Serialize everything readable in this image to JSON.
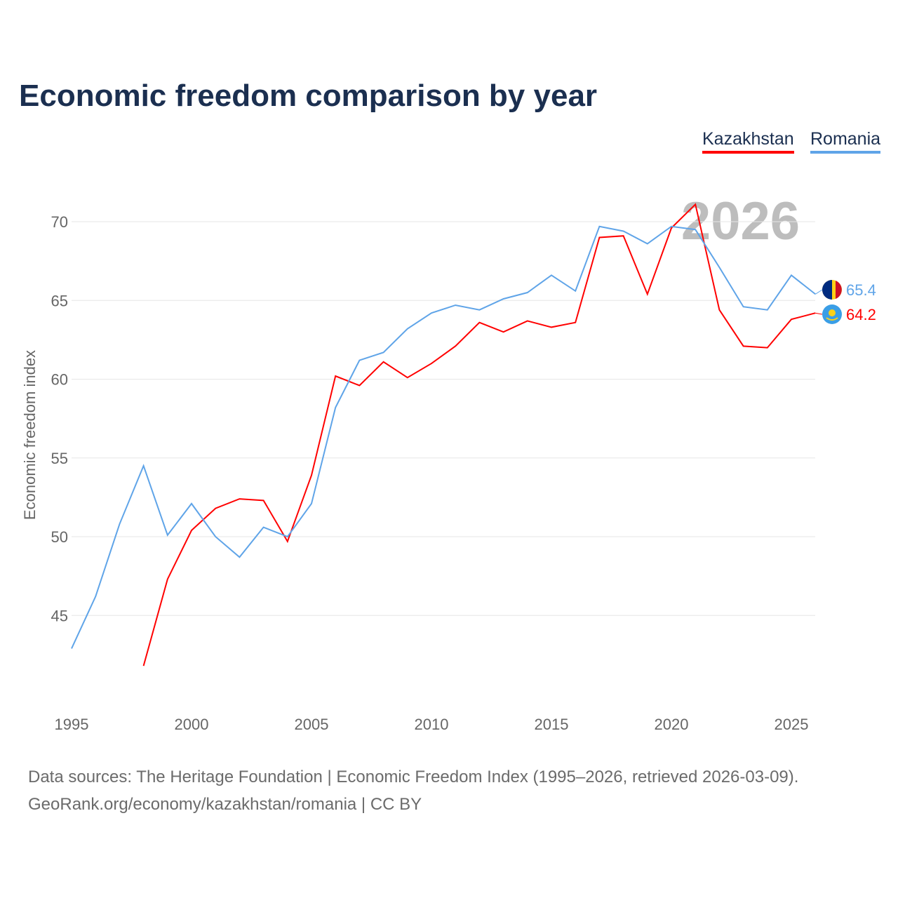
{
  "title": "Economic freedom comparison by year",
  "legend": [
    {
      "label": "Kazakhstan",
      "color": "#ff0000"
    },
    {
      "label": "Romania",
      "color": "#5fa4e8"
    }
  ],
  "footer": {
    "line1": "Data sources: The Heritage Foundation | Economic Freedom Index (1995–2026, retrieved 2026-03-09).",
    "line2": "GeoRank.org/economy/kazakhstan/romania | CC BY"
  },
  "chart_data": {
    "type": "line",
    "title": "Economic freedom comparison by year",
    "ylabel": "Economic freedom index",
    "xlabel": "",
    "year_watermark": "2026",
    "xlim": [
      1995,
      2026
    ],
    "ylim": [
      40.5,
      72.5
    ],
    "xticks": [
      1995,
      2000,
      2005,
      2010,
      2015,
      2020,
      2025
    ],
    "yticks": [
      45,
      50,
      55,
      60,
      65,
      70
    ],
    "grid": true,
    "series": [
      {
        "name": "Kazakhstan",
        "color": "#ff0000",
        "end_label": "64.2",
        "x": [
          1998,
          1999,
          2000,
          2001,
          2002,
          2003,
          2004,
          2005,
          2006,
          2007,
          2008,
          2009,
          2010,
          2011,
          2012,
          2013,
          2014,
          2015,
          2016,
          2017,
          2018,
          2019,
          2020,
          2021,
          2022,
          2023,
          2024,
          2025,
          2026
        ],
        "y": [
          41.8,
          47.3,
          50.4,
          51.8,
          52.4,
          52.3,
          49.7,
          53.9,
          60.2,
          59.6,
          61.1,
          60.1,
          61.0,
          62.1,
          63.6,
          63.0,
          63.7,
          63.3,
          63.6,
          69.0,
          69.1,
          65.4,
          69.6,
          71.1,
          64.4,
          62.1,
          62.0,
          63.8,
          64.2
        ]
      },
      {
        "name": "Romania",
        "color": "#5fa4e8",
        "end_label": "65.4",
        "x": [
          1995,
          1996,
          1997,
          1998,
          1999,
          2000,
          2001,
          2002,
          2003,
          2004,
          2005,
          2006,
          2007,
          2008,
          2009,
          2010,
          2011,
          2012,
          2013,
          2014,
          2015,
          2016,
          2017,
          2018,
          2019,
          2020,
          2021,
          2022,
          2023,
          2024,
          2025,
          2026
        ],
        "y": [
          42.9,
          46.2,
          50.8,
          54.5,
          50.1,
          52.1,
          50.0,
          48.7,
          50.6,
          50.0,
          52.1,
          58.2,
          61.2,
          61.7,
          63.2,
          64.2,
          64.7,
          64.4,
          65.1,
          65.5,
          66.6,
          65.6,
          69.7,
          69.4,
          68.6,
          69.7,
          69.5,
          67.1,
          64.6,
          64.4,
          66.6,
          65.4
        ]
      }
    ]
  }
}
